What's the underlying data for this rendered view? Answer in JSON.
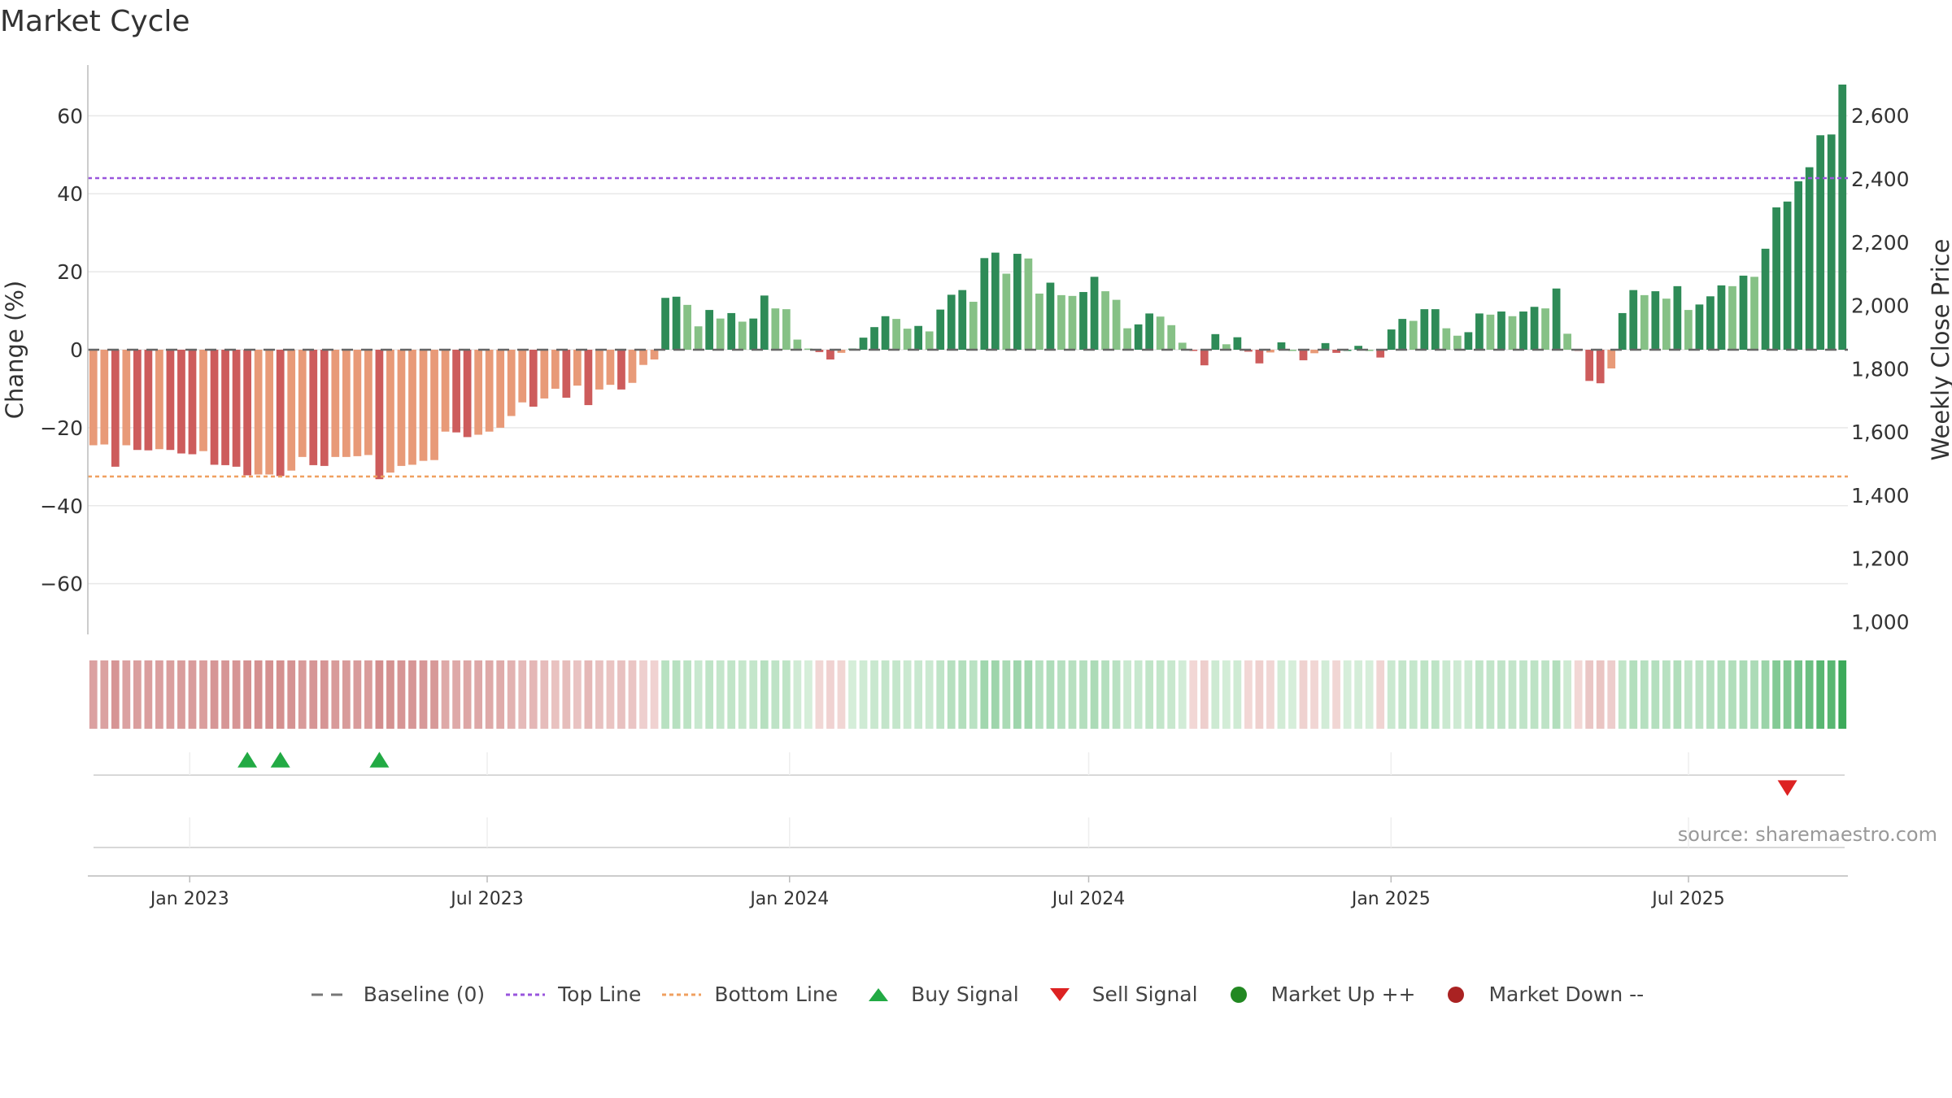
{
  "title": "Market Cycle",
  "source": "source: sharemaestro.com",
  "legend": [
    {
      "key": "baseline",
      "label": "Baseline (0)",
      "color": "#777777"
    },
    {
      "key": "top",
      "label": "Top Line",
      "color": "#9955dd"
    },
    {
      "key": "bottom",
      "label": "Bottom Line",
      "color": "#f0a060"
    },
    {
      "key": "buy",
      "label": "Buy Signal",
      "color": "#22aa44"
    },
    {
      "key": "sell",
      "label": "Sell Signal",
      "color": "#dd2222"
    },
    {
      "key": "up",
      "label": "Market Up ++",
      "color": "#228822"
    },
    {
      "key": "down",
      "label": "Market Down --",
      "color": "#aa2222"
    }
  ],
  "chart_data": {
    "type": "bar",
    "ylabel": "Change (%)",
    "ylabel_right": "Weekly Close Price",
    "ylim": [
      -73,
      73
    ],
    "y2lim": [
      960,
      2760
    ],
    "yticks": [
      60,
      40,
      20,
      0,
      -20,
      -40,
      -60
    ],
    "yticks_labels": [
      "60",
      "40",
      "20",
      "0",
      "−20",
      "−40",
      "−60"
    ],
    "y2ticks": [
      2600,
      2400,
      2200,
      2000,
      1800,
      1600,
      1400,
      1200,
      1000
    ],
    "y2ticks_labels": [
      "2,600",
      "2,400",
      "2,200",
      "2,000",
      "1,800",
      "1,600",
      "1,400",
      "1,200",
      "1,000"
    ],
    "x_start": "2022-10-31",
    "x_end": "2025-10-06",
    "xticks": [
      {
        "date": "2023-01-01",
        "label": "Jan 2023"
      },
      {
        "date": "2023-07-01",
        "label": "Jul 2023"
      },
      {
        "date": "2024-01-01",
        "label": "Jan 2024"
      },
      {
        "date": "2024-07-01",
        "label": "Jul 2024"
      },
      {
        "date": "2025-01-01",
        "label": "Jan 2025"
      },
      {
        "date": "2025-07-01",
        "label": "Jul 2025"
      }
    ],
    "top_line": 44,
    "bottom_line": -32.5,
    "values": [
      -24.5,
      -24.3,
      -30,
      -24.5,
      -25.7,
      -25.8,
      -25.5,
      -25.7,
      -26.6,
      -26.8,
      -26,
      -29.5,
      -29.6,
      -30,
      -32.2,
      -32,
      -32,
      -32.4,
      -31,
      -27.5,
      -29.6,
      -29.8,
      -27.5,
      -27.5,
      -27.3,
      -27,
      -33.2,
      -31.5,
      -29.8,
      -29.5,
      -28.5,
      -28.3,
      -21,
      -21.2,
      -22.4,
      -21.8,
      -21,
      -20,
      -17,
      -13.5,
      -14.6,
      -12.5,
      -10,
      -12.3,
      -9.2,
      -14.2,
      -10.2,
      -9,
      -10.2,
      -8.5,
      -3.9,
      -2.5,
      13.3,
      13.6,
      11.5,
      6,
      10.2,
      8,
      9.4,
      7.2,
      8,
      13.9,
      10.6,
      10.4,
      2.6,
      0.3,
      -0.6,
      -2.5,
      -0.8,
      0.3,
      3.1,
      5.8,
      8.6,
      7.9,
      5.4,
      6.1,
      4.7,
      10.3,
      14.1,
      15.3,
      12.3,
      23.5,
      24.9,
      19.5,
      24.6,
      23.4,
      14.4,
      17.2,
      14,
      13.8,
      14.8,
      18.7,
      15,
      12.8,
      5.5,
      6.5,
      9.3,
      8.5,
      6.3,
      1.8,
      -0.3,
      -4,
      4,
      1.4,
      3.2,
      -0.5,
      -3.5,
      -0.7,
      1.9,
      0,
      -2.7,
      -0.9,
      1.7,
      -0.8,
      0,
      1,
      0,
      -2,
      5.2,
      7.9,
      7.4,
      10.4,
      10.4,
      5.5,
      3.6,
      4.5,
      9.3,
      9,
      9.8,
      8.6,
      9.8,
      11,
      10.6,
      15.7,
      4.1,
      -0.3,
      -8,
      -8.6,
      -4.8,
      9.4,
      15.3,
      14,
      15,
      13.1,
      16.3,
      10.2,
      11.6,
      13.7,
      16.5,
      16.3,
      19,
      18.7,
      25.9,
      36.5,
      38,
      43.2,
      46.8,
      55,
      55.2,
      68
    ]
  }
}
